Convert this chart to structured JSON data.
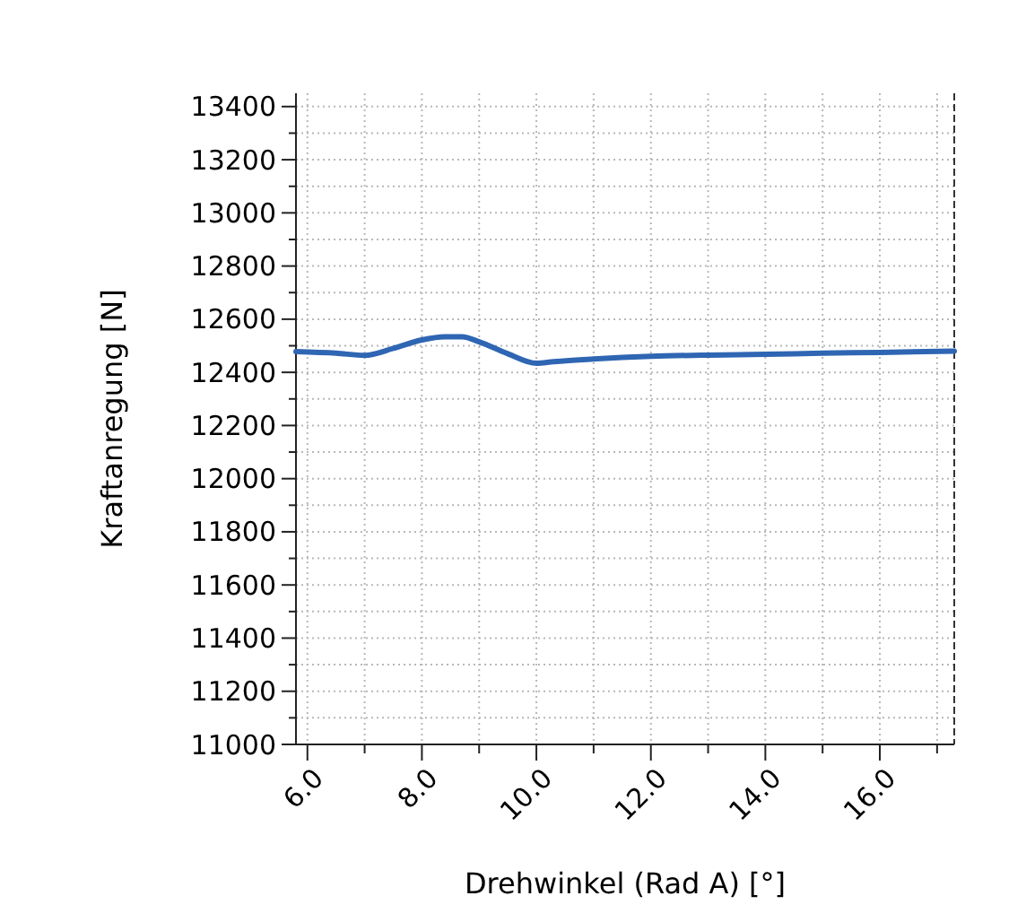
{
  "chart_data": {
    "type": "line",
    "xlabel": "Drehwinkel (Rad A) [°]",
    "ylabel": "Kraftanregung [N]",
    "xlim": [
      5.8,
      17.3
    ],
    "ylim": [
      11000,
      13450
    ],
    "xticks": [
      {
        "value": 6,
        "label": "6.0"
      },
      {
        "value": 7,
        "label": null
      },
      {
        "value": 8,
        "label": "8.0"
      },
      {
        "value": 9,
        "label": null
      },
      {
        "value": 10,
        "label": "10.0"
      },
      {
        "value": 11,
        "label": null
      },
      {
        "value": 12,
        "label": "12.0"
      },
      {
        "value": 13,
        "label": null
      },
      {
        "value": 14,
        "label": "14.0"
      },
      {
        "value": 15,
        "label": null
      },
      {
        "value": 16,
        "label": "16.0"
      },
      {
        "value": 17,
        "label": null
      }
    ],
    "yticks": [
      11000,
      {
        "value": 11100,
        "label": null
      },
      11200,
      {
        "value": 11300,
        "label": null
      },
      11400,
      {
        "value": 11500,
        "label": null
      },
      11600,
      {
        "value": 11700,
        "label": null
      },
      11800,
      {
        "value": 11900,
        "label": null
      },
      12000,
      {
        "value": 12100,
        "label": null
      },
      12200,
      {
        "value": 12300,
        "label": null
      },
      12400,
      {
        "value": 12500,
        "label": null
      },
      12600,
      {
        "value": 12700,
        "label": null
      },
      12800,
      {
        "value": 12900,
        "label": null
      },
      13000,
      {
        "value": 13100,
        "label": null
      },
      13200,
      {
        "value": 13300,
        "label": null
      },
      13400
    ],
    "grid": true,
    "marker": "none",
    "line_style": "solid",
    "series": [
      {
        "color": "#2f66b3",
        "x": [
          5.8,
          6.5,
          7.0,
          7.5,
          8.0,
          8.4,
          8.7,
          9.0,
          9.5,
          10.0,
          10.3,
          11.0,
          12.0,
          13.0,
          14.0,
          15.0,
          16.0,
          17.3
        ],
        "values": [
          12478,
          12472,
          12464,
          12490,
          12522,
          12534,
          12534,
          12515,
          12470,
          12434,
          12440,
          12450,
          12460,
          12465,
          12468,
          12472,
          12475,
          12480
        ]
      }
    ]
  }
}
